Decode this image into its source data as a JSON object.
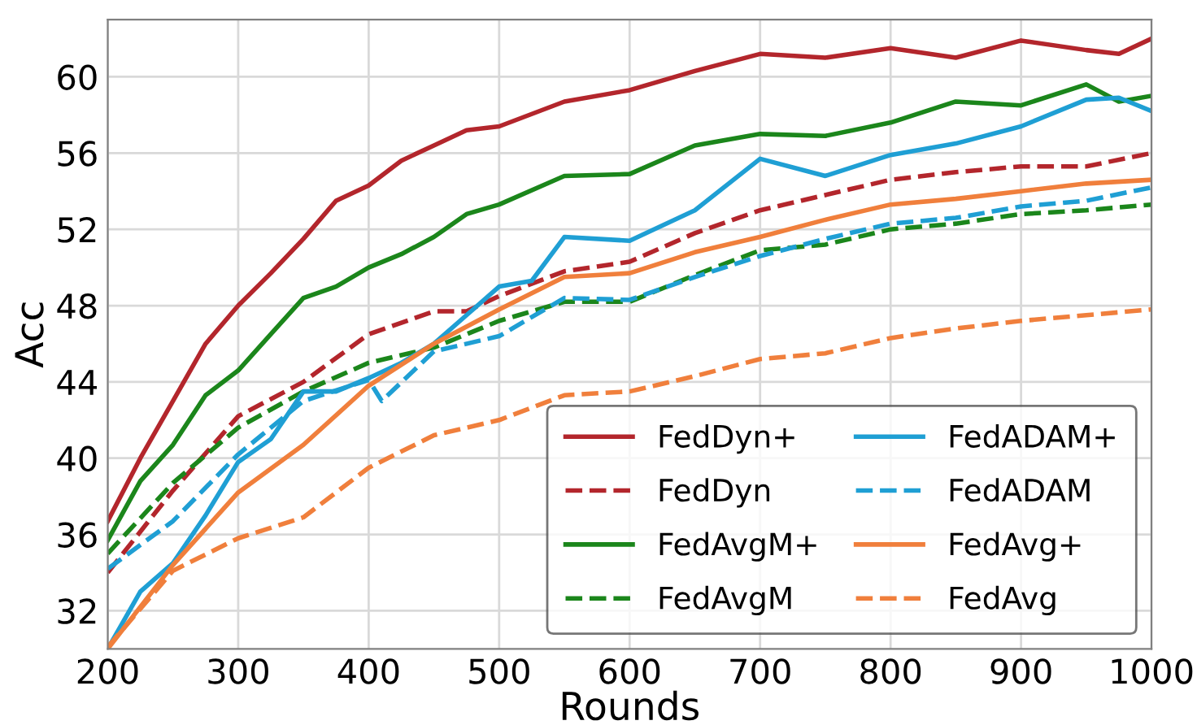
{
  "chart_data": {
    "type": "line",
    "xlabel": "Rounds",
    "ylabel": "Acc",
    "xlim": [
      200,
      1000
    ],
    "ylim": [
      30,
      63
    ],
    "xticks": [
      200,
      300,
      400,
      500,
      600,
      700,
      800,
      900,
      1000
    ],
    "yticks": [
      32,
      36,
      40,
      44,
      48,
      52,
      56,
      60
    ],
    "grid": true,
    "legend": "bottom right",
    "marker": "none",
    "series": [
      {
        "name": "FedDyn+",
        "color": "#b3262c",
        "line_style": "solid",
        "x": [
          200,
          225,
          250,
          275,
          300,
          325,
          350,
          375,
          400,
          425,
          450,
          475,
          500,
          550,
          600,
          650,
          700,
          750,
          800,
          850,
          900,
          950,
          975,
          1000
        ],
        "values": [
          36.7,
          40,
          43,
          46,
          48,
          49.7,
          51.5,
          53.5,
          54.3,
          55.6,
          56.4,
          57.2,
          57.4,
          58.7,
          59.3,
          60.3,
          61.2,
          61,
          61.5,
          61,
          61.9,
          61.4,
          61.2,
          62
        ]
      },
      {
        "name": "FedDyn",
        "color": "#b3262c",
        "line_style": "dashed",
        "x": [
          200,
          250,
          300,
          350,
          400,
          450,
          475,
          500,
          550,
          600,
          650,
          700,
          750,
          800,
          850,
          900,
          950,
          1000
        ],
        "values": [
          34,
          38.3,
          42.2,
          44,
          46.5,
          47.7,
          47.7,
          48.5,
          49.8,
          50.3,
          51.8,
          53,
          53.8,
          54.6,
          55,
          55.3,
          55.3,
          56
        ]
      },
      {
        "name": "FedAvgM+",
        "color": "#1b861b",
        "line_style": "solid",
        "x": [
          200,
          225,
          250,
          275,
          300,
          325,
          350,
          375,
          400,
          425,
          450,
          475,
          500,
          550,
          600,
          650,
          700,
          750,
          800,
          850,
          900,
          950,
          975,
          1000
        ],
        "values": [
          35.7,
          38.8,
          40.7,
          43.3,
          44.6,
          46.5,
          48.4,
          49,
          50,
          50.7,
          51.6,
          52.8,
          53.3,
          54.8,
          54.9,
          56.4,
          57,
          56.9,
          57.6,
          58.7,
          58.5,
          59.6,
          58.7,
          59
        ]
      },
      {
        "name": "FedAvgM",
        "color": "#1b861b",
        "line_style": "dashed",
        "x": [
          200,
          250,
          300,
          350,
          400,
          450,
          500,
          550,
          600,
          650,
          700,
          750,
          800,
          850,
          900,
          950,
          1000
        ],
        "values": [
          35,
          38.7,
          41.6,
          43.5,
          45,
          45.8,
          47.2,
          48.2,
          48.2,
          49.6,
          50.9,
          51.2,
          52,
          52.3,
          52.8,
          53,
          53.3
        ]
      },
      {
        "name": "FedADAM+",
        "color": "#1f9fd4",
        "line_style": "solid",
        "x": [
          200,
          225,
          250,
          275,
          300,
          325,
          350,
          375,
          400,
          425,
          450,
          475,
          500,
          525,
          550,
          600,
          650,
          700,
          750,
          800,
          850,
          900,
          950,
          975,
          1000
        ],
        "values": [
          30,
          33,
          34.5,
          37,
          39.8,
          41,
          43.5,
          43.5,
          44.2,
          45,
          46,
          47.5,
          49,
          49.3,
          51.6,
          51.4,
          53,
          55.7,
          54.8,
          55.9,
          56.5,
          57.4,
          58.8,
          58.9,
          58.2
        ]
      },
      {
        "name": "FedADAM",
        "color": "#1f9fd4",
        "line_style": "dashed",
        "x": [
          200,
          250,
          300,
          350,
          400,
          410,
          450,
          500,
          550,
          600,
          650,
          700,
          750,
          800,
          850,
          900,
          950,
          1000
        ],
        "values": [
          34.2,
          36.7,
          40.2,
          43,
          44.1,
          43,
          45.6,
          46.4,
          48.4,
          48.3,
          49.5,
          50.6,
          51.5,
          52.3,
          52.6,
          53.2,
          53.5,
          54.2
        ]
      },
      {
        "name": "FedAvg+",
        "color": "#f07f3c",
        "line_style": "solid",
        "x": [
          200,
          250,
          300,
          350,
          400,
          450,
          500,
          550,
          600,
          650,
          700,
          750,
          800,
          850,
          900,
          950,
          1000
        ],
        "values": [
          30,
          34.4,
          38.2,
          40.7,
          43.8,
          46,
          47.8,
          49.5,
          49.7,
          50.8,
          51.6,
          52.5,
          53.3,
          53.6,
          54,
          54.4,
          54.6
        ]
      },
      {
        "name": "FedAvg",
        "color": "#f07f3c",
        "line_style": "dashed",
        "x": [
          200,
          250,
          300,
          350,
          400,
          450,
          500,
          550,
          600,
          650,
          700,
          750,
          800,
          850,
          900,
          950,
          1000
        ],
        "values": [
          30.1,
          34.1,
          35.8,
          36.9,
          39.5,
          41.2,
          42,
          43.3,
          43.5,
          44.3,
          45.2,
          45.5,
          46.3,
          46.8,
          47.2,
          47.5,
          47.8
        ]
      }
    ]
  }
}
